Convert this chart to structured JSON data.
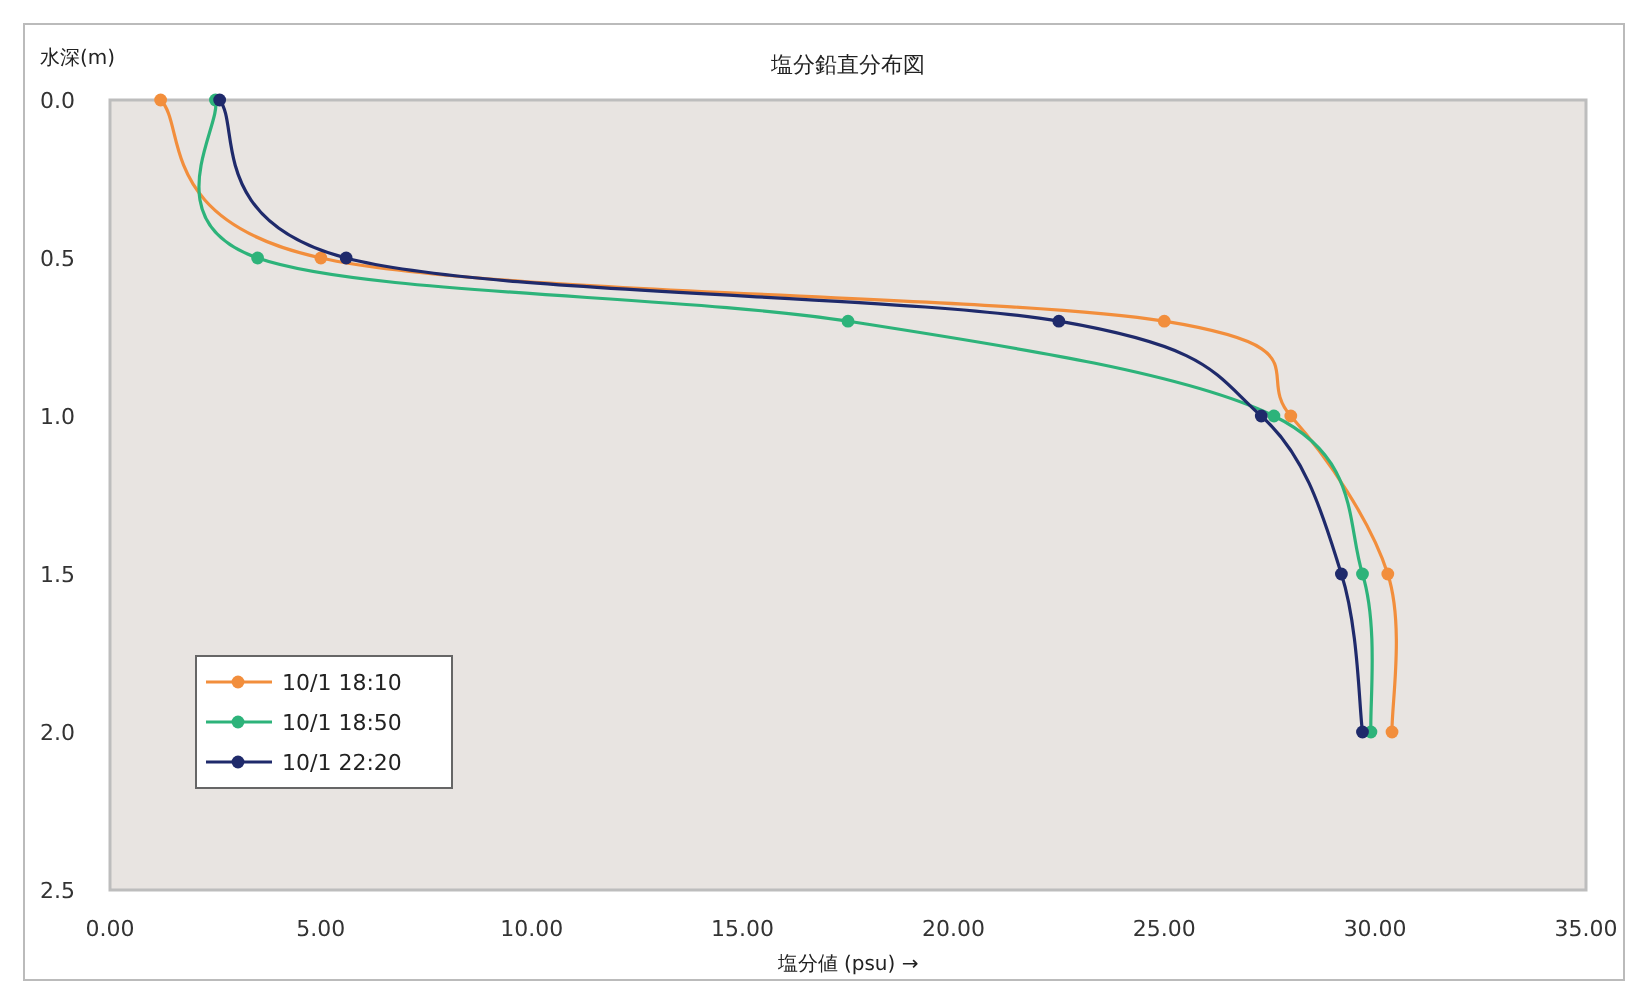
{
  "chart_data": {
    "type": "line",
    "title": "塩分鉛直分布図",
    "xlabel": "塩分値 (psu) →",
    "ylabel": "水深(m)",
    "xlim": [
      0,
      35
    ],
    "ylim": [
      2.5,
      0
    ],
    "xticks": [
      {
        "value": 0,
        "label": "0.00"
      },
      {
        "value": 5,
        "label": "5.00"
      },
      {
        "value": 10,
        "label": "10.00"
      },
      {
        "value": 15,
        "label": "15.00"
      },
      {
        "value": 20,
        "label": "20.00"
      },
      {
        "value": 25,
        "label": "25.00"
      },
      {
        "value": 30,
        "label": "30.00"
      },
      {
        "value": 35,
        "label": "35.00"
      }
    ],
    "yticks": [
      {
        "value": 0,
        "label": "0.0"
      },
      {
        "value": 0.5,
        "label": "0.5"
      },
      {
        "value": 1,
        "label": "1.0"
      },
      {
        "value": 1.5,
        "label": "1.5"
      },
      {
        "value": 2,
        "label": "2.0"
      },
      {
        "value": 2.5,
        "label": "2.5"
      }
    ],
    "marker": "circle",
    "legend": "bottom left",
    "grid": false,
    "series": [
      {
        "name": "10/1 18:10",
        "color": "#f28e3c",
        "x": [
          1.2,
          5.0,
          25.0,
          28.0,
          30.3,
          30.4
        ],
        "values": [
          0,
          0.5,
          0.7,
          1.0,
          1.5,
          2.0
        ]
      },
      {
        "name": "10/1 18:50",
        "color": "#2db37a",
        "x": [
          2.5,
          3.5,
          17.5,
          27.6,
          29.7,
          29.9
        ],
        "values": [
          0,
          0.5,
          0.7,
          1.0,
          1.5,
          2.0
        ]
      },
      {
        "name": "10/1 22:20",
        "color": "#1f2a6b",
        "x": [
          2.6,
          5.6,
          22.5,
          27.3,
          29.2,
          29.7
        ],
        "values": [
          0,
          0.5,
          0.7,
          1.0,
          1.5,
          2.0
        ]
      }
    ]
  }
}
